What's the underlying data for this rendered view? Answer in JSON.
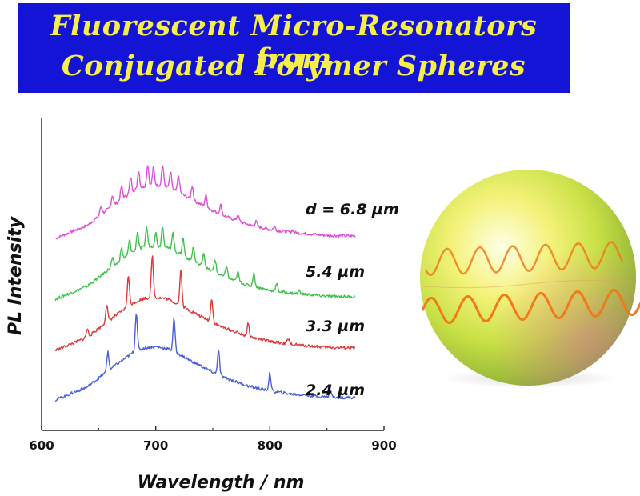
{
  "title": {
    "line1": "Fluorescent Micro-Resonators from",
    "line2": "Conjugated Polymer Spheres"
  },
  "colors": {
    "banner_bg": "#1414d6",
    "banner_text": "#f6ee4a",
    "series_magenta": "#e04fd8",
    "series_green": "#3ec24a",
    "series_red": "#dd3a3a",
    "series_blue": "#4a62d8",
    "wave": "#f07a18"
  },
  "chart_data": {
    "type": "line",
    "xlabel": "Wavelength / nm",
    "ylabel": "PL Intensity",
    "xlim": [
      600,
      900
    ],
    "xticks": [
      600,
      700,
      800,
      900
    ],
    "yticks_shown": false,
    "grid": false,
    "legend": "inline labels at right end of each curve",
    "y_units": "arbitrary, vertically offset (not quantitative)",
    "series": [
      {
        "name": "d = 6.8 µm",
        "color": "#e04fd8",
        "offset": 3,
        "x": [
          612,
          640,
          660,
          670,
          680,
          690,
          700,
          710,
          720,
          730,
          740,
          750,
          760,
          780,
          800,
          820,
          850,
          875
        ],
        "y": [
          0.0,
          0.22,
          0.52,
          0.66,
          0.8,
          0.88,
          0.9,
          0.87,
          0.78,
          0.67,
          0.57,
          0.47,
          0.38,
          0.24,
          0.15,
          0.1,
          0.05,
          0.04
        ],
        "peaks": [
          [
            652,
            0.14
          ],
          [
            662,
            0.18
          ],
          [
            670,
            0.22
          ],
          [
            678,
            0.26
          ],
          [
            685,
            0.3
          ],
          [
            693,
            0.36
          ],
          [
            698,
            0.3
          ],
          [
            706,
            0.36
          ],
          [
            713,
            0.28
          ],
          [
            720,
            0.28
          ],
          [
            732,
            0.24
          ],
          [
            744,
            0.2
          ],
          [
            757,
            0.16
          ],
          [
            772,
            0.1
          ],
          [
            788,
            0.08
          ],
          [
            804,
            0.06
          ],
          [
            820,
            0.04
          ]
        ]
      },
      {
        "name": "5.4 µm",
        "color": "#3ec24a",
        "offset": 2,
        "x": [
          612,
          640,
          660,
          670,
          680,
          690,
          700,
          710,
          720,
          730,
          740,
          750,
          760,
          780,
          800,
          820,
          850,
          875
        ],
        "y": [
          0.0,
          0.22,
          0.52,
          0.66,
          0.8,
          0.88,
          0.9,
          0.87,
          0.78,
          0.67,
          0.57,
          0.47,
          0.38,
          0.24,
          0.15,
          0.1,
          0.05,
          0.04
        ],
        "peaks": [
          [
            662,
            0.14
          ],
          [
            670,
            0.2
          ],
          [
            677,
            0.24
          ],
          [
            684,
            0.3
          ],
          [
            692,
            0.34
          ],
          [
            700,
            0.22
          ],
          [
            706,
            0.36
          ],
          [
            715,
            0.3
          ],
          [
            724,
            0.3
          ],
          [
            733,
            0.24
          ],
          [
            742,
            0.24
          ],
          [
            752,
            0.22
          ],
          [
            762,
            0.2
          ],
          [
            772,
            0.16
          ],
          [
            786,
            0.22
          ],
          [
            806,
            0.12
          ],
          [
            826,
            0.06
          ]
        ]
      },
      {
        "name": "3.3 µm",
        "color": "#dd3a3a",
        "offset": 1,
        "x": [
          612,
          640,
          660,
          670,
          680,
          690,
          700,
          710,
          720,
          730,
          740,
          750,
          760,
          780,
          800,
          820,
          850,
          875
        ],
        "y": [
          0.0,
          0.22,
          0.52,
          0.66,
          0.8,
          0.88,
          0.9,
          0.87,
          0.78,
          0.67,
          0.57,
          0.47,
          0.38,
          0.24,
          0.15,
          0.1,
          0.05,
          0.04
        ],
        "peaks": [
          [
            640,
            0.14
          ],
          [
            657,
            0.3
          ],
          [
            676,
            0.52
          ],
          [
            697,
            0.7
          ],
          [
            722,
            0.6
          ],
          [
            749,
            0.4
          ],
          [
            781,
            0.22
          ],
          [
            816,
            0.08
          ]
        ]
      },
      {
        "name": "2.4 µm",
        "color": "#4a62d8",
        "offset": 0,
        "x": [
          612,
          640,
          660,
          670,
          680,
          690,
          700,
          710,
          720,
          730,
          740,
          750,
          760,
          780,
          800,
          820,
          850,
          875
        ],
        "y": [
          0.0,
          0.22,
          0.52,
          0.66,
          0.8,
          0.88,
          0.9,
          0.87,
          0.78,
          0.67,
          0.57,
          0.47,
          0.38,
          0.24,
          0.15,
          0.1,
          0.05,
          0.04
        ],
        "peaks": [
          [
            658,
            0.32
          ],
          [
            683,
            0.66
          ],
          [
            716,
            0.56
          ],
          [
            755,
            0.42
          ],
          [
            800,
            0.3
          ],
          [
            853,
            0.12
          ]
        ]
      }
    ]
  }
}
